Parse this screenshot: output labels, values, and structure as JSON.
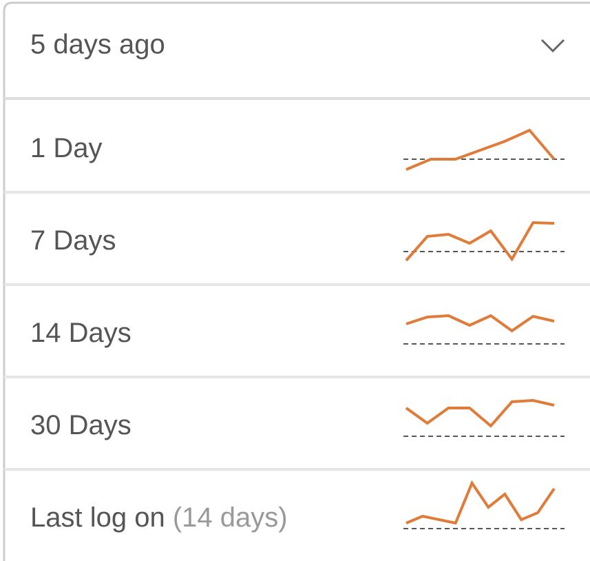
{
  "selected": "5 days ago",
  "options": [
    {
      "label": "1 Day",
      "sparkline": [
        -15,
        0,
        0,
        13,
        26,
        42,
        0
      ]
    },
    {
      "label": "7 Days",
      "sparkline": [
        -13,
        22,
        25,
        12,
        30,
        -11,
        42,
        41
      ]
    },
    {
      "label": "14 Days",
      "sparkline": [
        29,
        39,
        41,
        27,
        41,
        19,
        40,
        33
      ]
    },
    {
      "label": "30 Days",
      "sparkline": [
        41,
        19,
        41,
        41,
        15,
        50,
        52,
        45
      ]
    },
    {
      "label": "Last log on",
      "note": "(14 days)",
      "sparkline": [
        8,
        18,
        13,
        8,
        66,
        31,
        50,
        13,
        23,
        58
      ]
    }
  ]
}
